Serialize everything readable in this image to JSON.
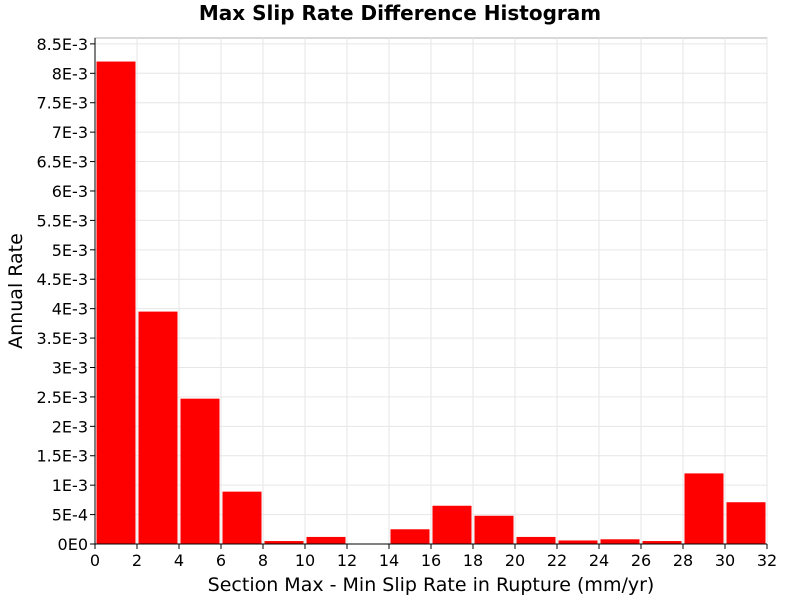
{
  "chart_data": {
    "type": "bar",
    "title": "Max Slip Rate Difference Histogram",
    "xlabel": "Section Max - Min Slip Rate in Rupture (mm/yr)",
    "ylabel": "Annual Rate",
    "xlim": [
      0,
      32
    ],
    "ylim": [
      0,
      0.0086
    ],
    "grid": true,
    "bar_color": "#ff0000",
    "x_ticks": [
      0,
      2,
      4,
      6,
      8,
      10,
      12,
      14,
      16,
      18,
      20,
      22,
      24,
      26,
      28,
      30,
      32
    ],
    "x_tick_labels": [
      "0",
      "2",
      "4",
      "6",
      "8",
      "10",
      "12",
      "14",
      "16",
      "18",
      "20",
      "22",
      "24",
      "26",
      "28",
      "30",
      "32"
    ],
    "y_ticks": [
      0,
      0.0005,
      0.001,
      0.0015,
      0.002,
      0.0025,
      0.003,
      0.0035,
      0.004,
      0.0045,
      0.005,
      0.0055,
      0.006,
      0.0065,
      0.007,
      0.0075,
      0.008,
      0.0085
    ],
    "y_tick_labels": [
      "0E0",
      "5E-4",
      "1E-3",
      "1.5E-3",
      "2E-3",
      "2.5E-3",
      "3E-3",
      "3.5E-3",
      "4E-3",
      "4.5E-3",
      "5E-3",
      "5.5E-3",
      "6E-3",
      "6.5E-3",
      "7E-3",
      "7.5E-3",
      "8E-3",
      "8.5E-3"
    ],
    "bin_width": 2,
    "bin_starts": [
      0,
      2,
      4,
      6,
      8,
      10,
      12,
      14,
      16,
      18,
      20,
      22,
      24,
      26,
      28,
      30
    ],
    "values": [
      0.0082,
      0.00395,
      0.00247,
      0.00089,
      5e-05,
      0.00012,
      0.0,
      0.00025,
      0.00065,
      0.00048,
      0.00012,
      6e-05,
      8e-05,
      5e-05,
      0.0012,
      0.00071
    ]
  }
}
